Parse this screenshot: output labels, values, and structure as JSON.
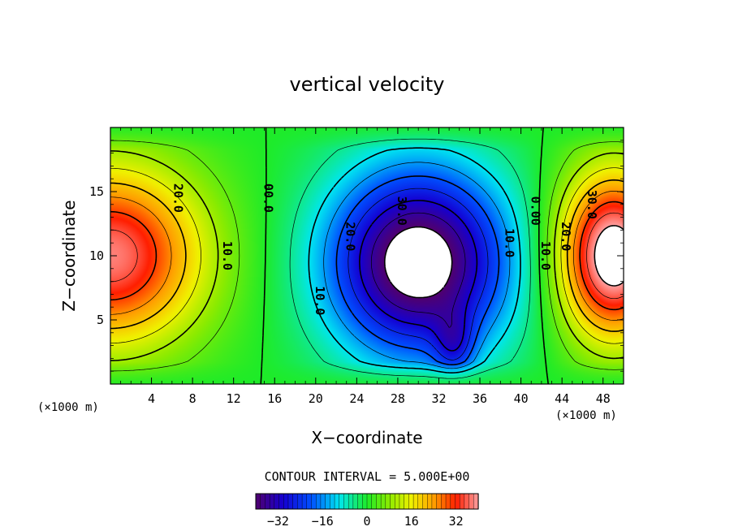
{
  "chart_data": {
    "type": "contour",
    "title": "vertical velocity",
    "xlabel": "X−coordinate",
    "ylabel": "Z−coordinate",
    "x_unit": "(×1000 m)",
    "x_unit_right": "(×1000 m)",
    "xlim": [
      0,
      50
    ],
    "ylim": [
      0,
      20
    ],
    "x_ticks": [
      "4",
      "8",
      "12",
      "16",
      "20",
      "24",
      "28",
      "32",
      "36",
      "40",
      "44",
      "48"
    ],
    "x_tick_values": [
      4,
      8,
      12,
      16,
      20,
      24,
      28,
      32,
      36,
      40,
      44,
      48
    ],
    "y_ticks": [
      "5",
      "10",
      "15"
    ],
    "y_tick_values": [
      5,
      10,
      15
    ],
    "contour_interval_text": "CONTOUR INTERVAL = 5.000E+00",
    "contour_interval": 5,
    "colorbar": {
      "range": [
        -40,
        40
      ],
      "ticks": [
        "−32",
        "−16",
        "0",
        "16",
        "32"
      ],
      "tick_values": [
        -32,
        -16,
        0,
        16,
        32
      ]
    },
    "field_features": [
      {
        "type": "updraft",
        "center": [
          0,
          10
        ],
        "peak": 35
      },
      {
        "type": "downdraft",
        "center": [
          32,
          10
        ],
        "peak": -42
      },
      {
        "type": "updraft",
        "center": [
          47,
          10
        ],
        "peak": 42
      }
    ],
    "contour_labels": [
      {
        "text": "20.0",
        "x": 6.2,
        "z": 14.5
      },
      {
        "text": "10.0",
        "x": 11.0,
        "z": 10.0
      },
      {
        "text": "00.0",
        "x": 15.0,
        "z": 14.5
      },
      {
        "text": "10.0",
        "x": 20.0,
        "z": 6.5
      },
      {
        "text": "20.0",
        "x": 23.0,
        "z": 11.5
      },
      {
        "text": "30.0",
        "x": 28.0,
        "z": 13.5
      },
      {
        "text": "10.0",
        "x": 38.5,
        "z": 11.0
      },
      {
        "text": "0.00",
        "x": 41.0,
        "z": 13.5
      },
      {
        "text": "10.0",
        "x": 42.0,
        "z": 10.0
      },
      {
        "text": "20.0",
        "x": 44.0,
        "z": 11.5
      },
      {
        "text": "30.0",
        "x": 46.5,
        "z": 14.0
      }
    ],
    "colors": {
      "neg_max": "#4b006e",
      "neg": "#0000cd",
      "zero": "#22ee22",
      "pos": "#ffcc00",
      "pos_max": "#ff9999",
      "out_of_range": "#ffffff"
    }
  }
}
